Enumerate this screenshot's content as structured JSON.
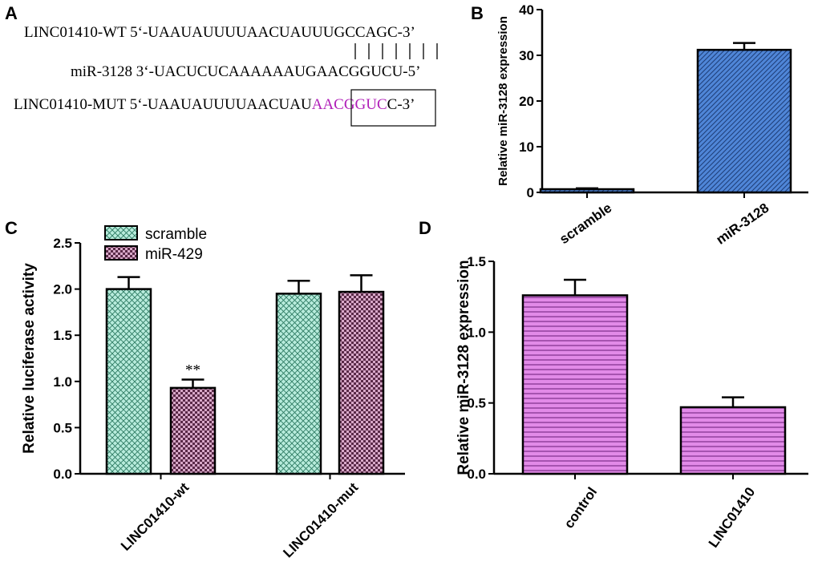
{
  "panel_a": {
    "label": "A",
    "wt_line": "LINC01410-WT 5‘-UAAUAUUUUAACUAUUUGCCAGC-3’",
    "mir_line": "miR-3128 3‘-UACUCUCAAAAAAUGAACGGUCU-5’",
    "mut_prefix": "LINC01410-MUT 5‘-UAAUAUUUUAACUAU",
    "mut_highlight": "AACGGUC",
    "mut_suffix": "C-3’",
    "highlight_color": "#b01eb8"
  },
  "chart_data": [
    {
      "panel": "B",
      "type": "bar",
      "categories": [
        "scramble",
        "miR-3128"
      ],
      "values": [
        0.7,
        31.2
      ],
      "errors": [
        0.2,
        1.5
      ],
      "ylabel": "Relative miR-3128 expression",
      "ylim": [
        0,
        40
      ],
      "yticks": [
        "0",
        "10",
        "20",
        "30",
        "40"
      ],
      "color": "#4f86d8"
    },
    {
      "panel": "C",
      "type": "bar",
      "categories": [
        "LINC01410-wt",
        "LINC01410-mut"
      ],
      "series": [
        {
          "name": "scramble",
          "values": [
            2.0,
            1.95
          ],
          "errors": [
            0.13,
            0.14
          ],
          "color": "#b8ecdc"
        },
        {
          "name": "miR-429",
          "values": [
            0.93,
            1.97
          ],
          "errors": [
            0.09,
            0.18
          ],
          "color": "#d8a8c8"
        }
      ],
      "annotation": "**",
      "ylabel": "Relative luciferase activity",
      "ylim": [
        0,
        2.5
      ],
      "yticks": [
        "0.0",
        "0.5",
        "1.0",
        "1.5",
        "2.0",
        "2.5"
      ]
    },
    {
      "panel": "D",
      "type": "bar",
      "categories": [
        "control",
        "LINC01410"
      ],
      "values": [
        1.26,
        0.47
      ],
      "errors": [
        0.11,
        0.07
      ],
      "ylabel": "Relative miR-3128 expression",
      "ylim": [
        0,
        1.5
      ],
      "yticks": [
        "0.0",
        "0.5",
        "1.0",
        "1.5"
      ],
      "color": "#e28ae8"
    }
  ]
}
